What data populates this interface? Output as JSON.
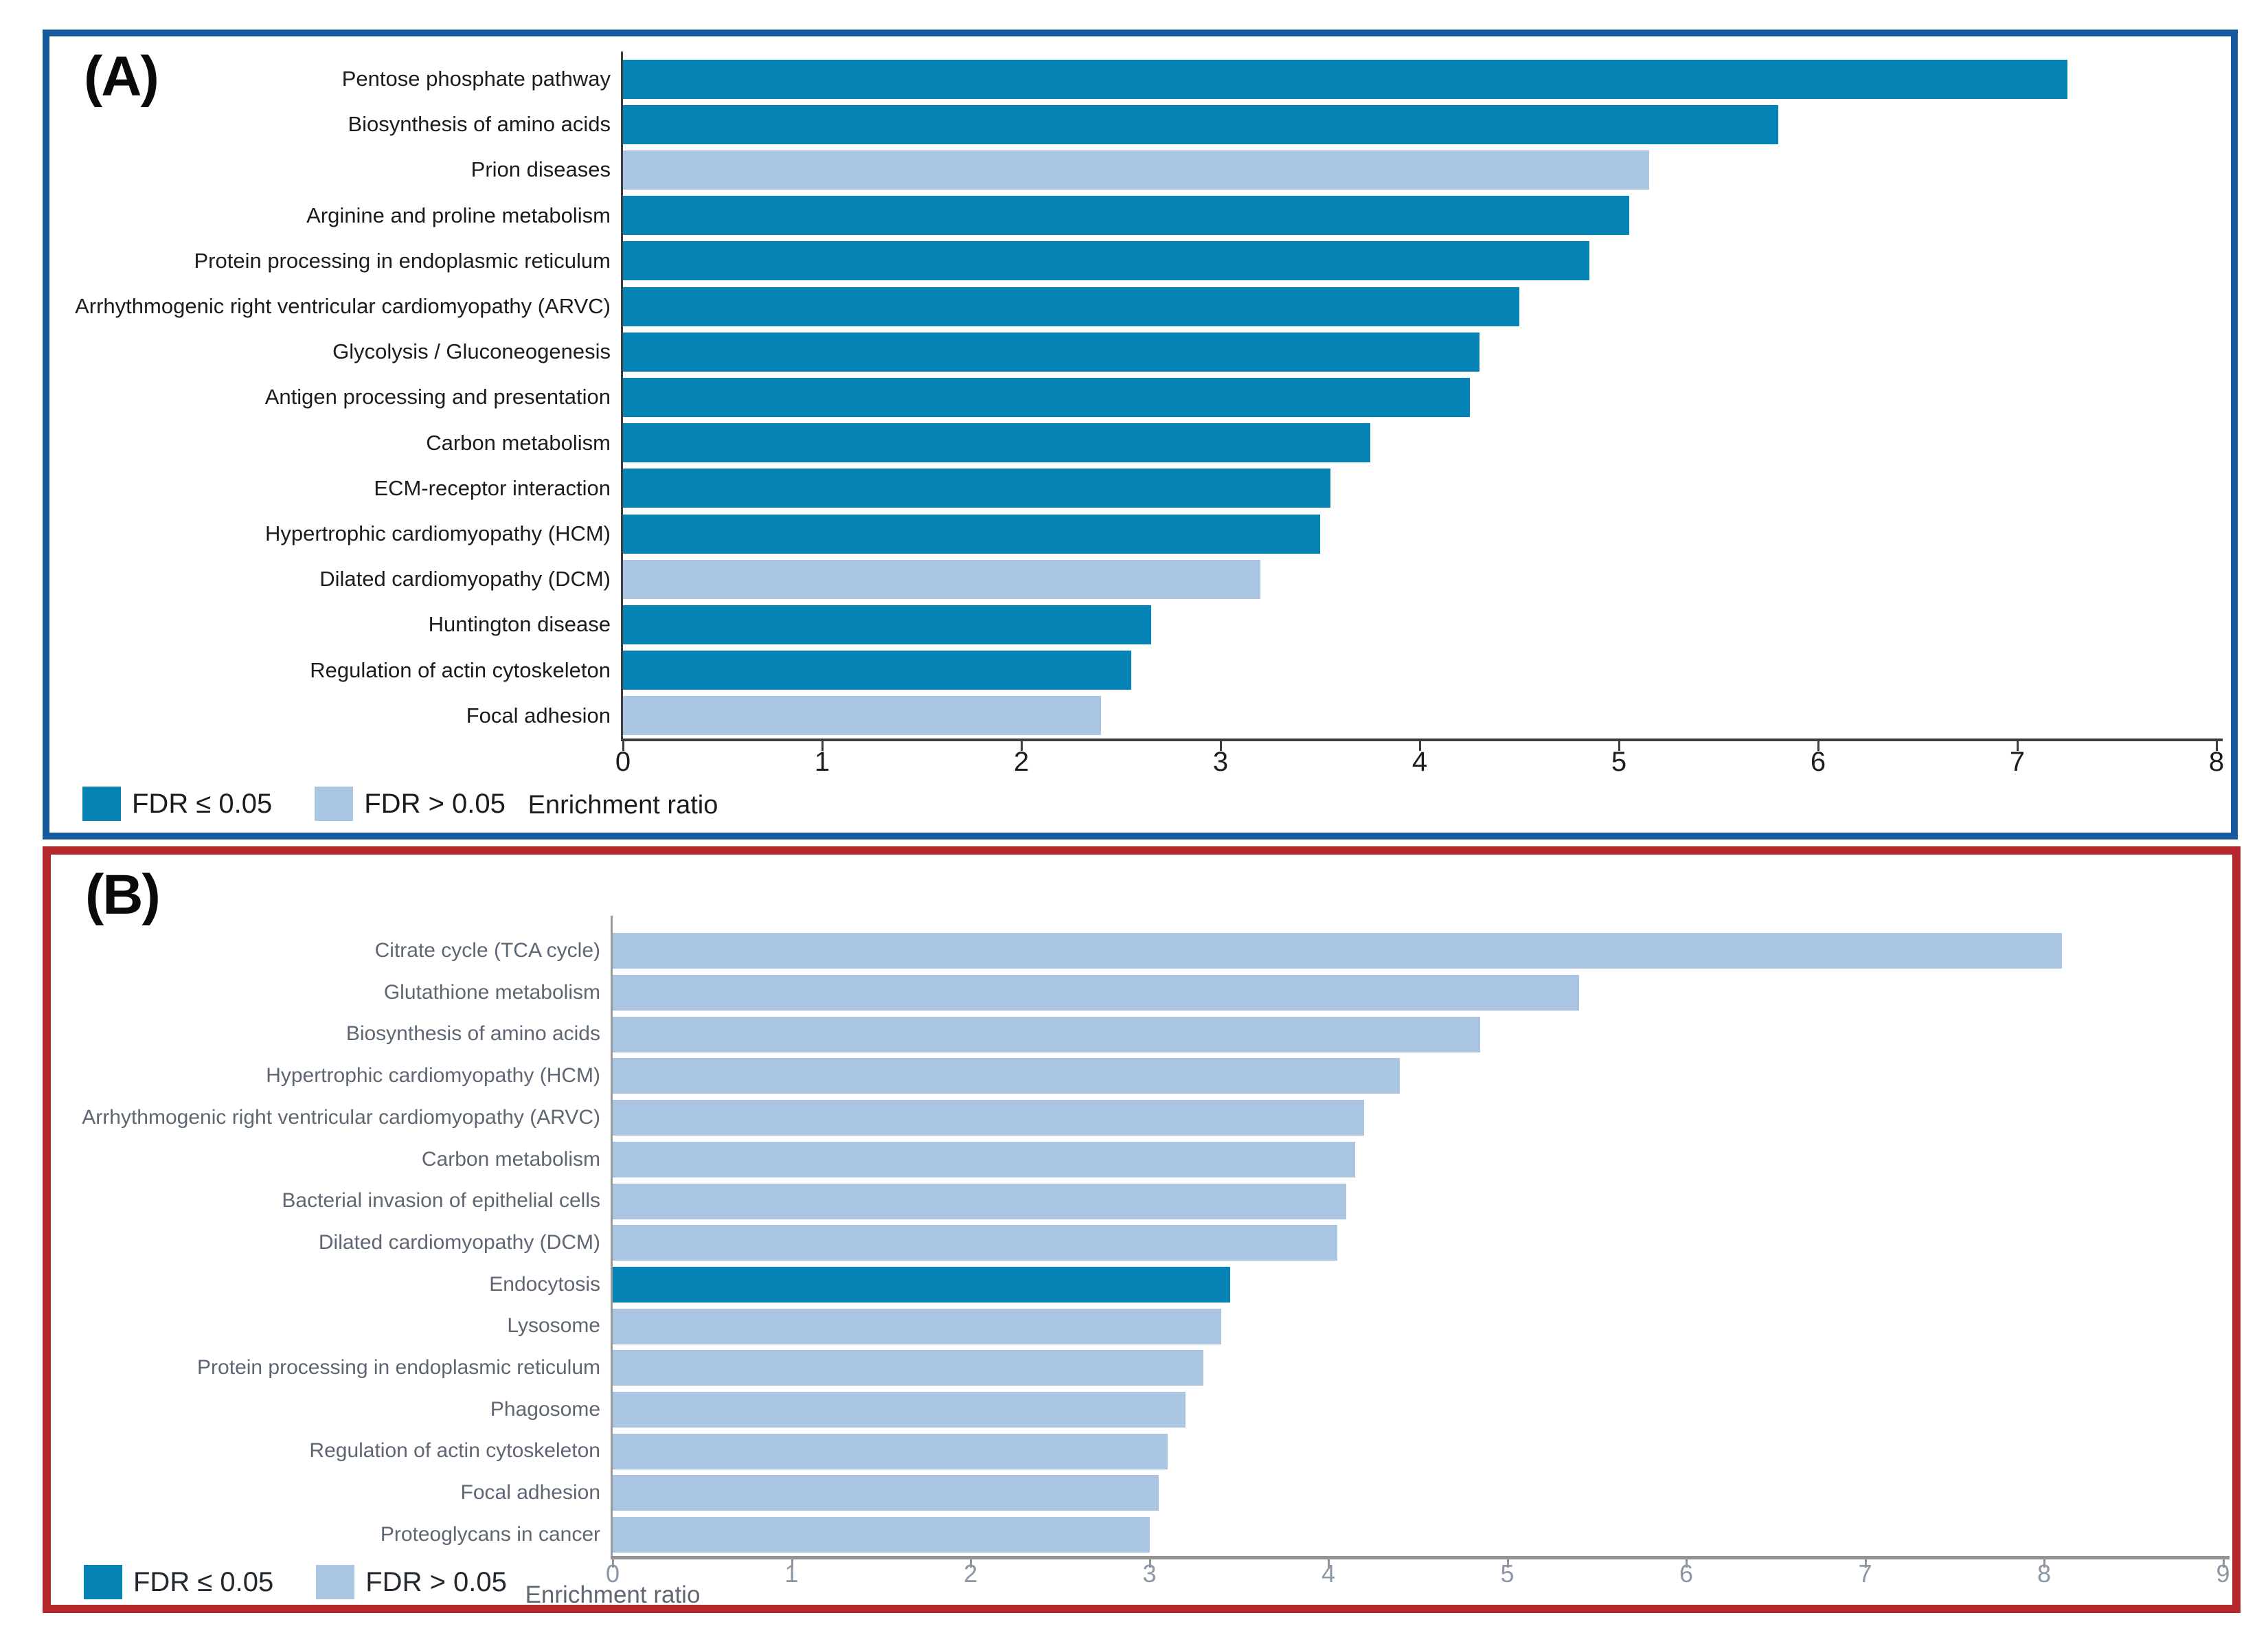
{
  "figure": {
    "description_visible_text_only": "Two horizontal bar charts of KEGG pathway enrichment",
    "panel_a_border_color": "#15599c",
    "panel_b_border_color": "#b2282c"
  },
  "chart_data": [
    {
      "type": "bar",
      "orientation": "horizontal",
      "panel_label": "(A)",
      "xlabel": "Enrichment ratio",
      "xlim": [
        0,
        8
      ],
      "xticks": [
        0,
        1,
        2,
        3,
        4,
        5,
        6,
        7,
        8
      ],
      "grid": false,
      "legend_position": "bottom-left",
      "legend": [
        {
          "label": "FDR ≤ 0.05",
          "color": "#0583b5"
        },
        {
          "label": "FDR > 0.05",
          "color": "#a9c5e2"
        }
      ],
      "bar_color_significant": "#0583b5",
      "bar_color_not_significant": "#a9c5e2",
      "categories": [
        "Pentose phosphate pathway",
        "Biosynthesis of amino acids",
        "Prion diseases",
        "Arginine and proline metabolism",
        "Protein processing in endoplasmic reticulum",
        "Arrhythmogenic right ventricular cardiomyopathy (ARVC)",
        "Glycolysis / Gluconeogenesis",
        "Antigen processing and presentation",
        "Carbon metabolism",
        "ECM-receptor interaction",
        "Hypertrophic cardiomyopathy (HCM)",
        "Dilated cardiomyopathy (DCM)",
        "Huntington disease",
        "Regulation of actin cytoskeleton",
        "Focal adhesion"
      ],
      "values": [
        7.25,
        5.8,
        5.15,
        5.05,
        4.85,
        4.5,
        4.3,
        4.25,
        3.75,
        3.55,
        3.5,
        3.2,
        2.65,
        2.55,
        2.4
      ],
      "fdr_significant": [
        true,
        true,
        false,
        true,
        true,
        true,
        true,
        true,
        true,
        true,
        true,
        false,
        true,
        true,
        false
      ]
    },
    {
      "type": "bar",
      "orientation": "horizontal",
      "panel_label": "(B)",
      "xlabel": "Enrichment ratio",
      "xlim": [
        0,
        9
      ],
      "xticks": [
        0,
        1,
        2,
        3,
        4,
        5,
        6,
        7,
        8,
        9
      ],
      "grid": false,
      "legend_position": "bottom-left",
      "legend": [
        {
          "label": "FDR ≤ 0.05",
          "color": "#0583b5"
        },
        {
          "label": "FDR > 0.05",
          "color": "#a9c5e2"
        }
      ],
      "bar_color_significant": "#0583b5",
      "bar_color_not_significant": "#a9c5e2",
      "categories": [
        "Citrate cycle (TCA cycle)",
        "Glutathione metabolism",
        "Biosynthesis of amino acids",
        "Hypertrophic cardiomyopathy (HCM)",
        "Arrhythmogenic right ventricular cardiomyopathy (ARVC)",
        "Carbon metabolism",
        "Bacterial invasion of epithelial cells",
        "Dilated cardiomyopathy (DCM)",
        "Endocytosis",
        "Lysosome",
        "Protein processing in endoplasmic reticulum",
        "Phagosome",
        "Regulation of actin cytoskeleton",
        "Focal adhesion",
        "Proteoglycans in cancer"
      ],
      "values": [
        8.1,
        5.4,
        4.85,
        4.4,
        4.2,
        4.15,
        4.1,
        4.05,
        3.45,
        3.4,
        3.3,
        3.2,
        3.1,
        3.05,
        3.0
      ],
      "fdr_significant": [
        false,
        false,
        false,
        false,
        false,
        false,
        false,
        false,
        true,
        false,
        false,
        false,
        false,
        false,
        false
      ]
    }
  ]
}
